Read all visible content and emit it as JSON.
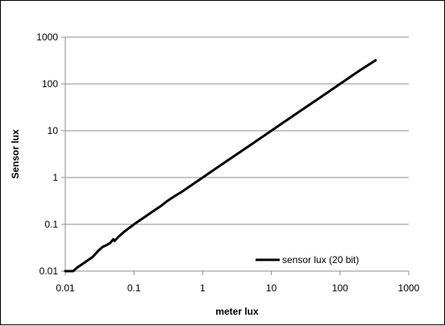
{
  "chart_data": {
    "type": "line",
    "xscale": "log",
    "yscale": "log",
    "xlabel": "meter lux",
    "ylabel": "Sensor lux",
    "xlim": [
      0.01,
      1000
    ],
    "ylim": [
      0.01,
      1000
    ],
    "x_ticks": [
      "0.01",
      "0.1",
      "1",
      "10",
      "100",
      "1000"
    ],
    "y_ticks": [
      "0.01",
      "0.1",
      "1",
      "10",
      "100",
      "1000"
    ],
    "grid": "horizontal major gridlines",
    "legend_position": "bottom-right",
    "series": [
      {
        "name": "sensor lux (20 bit)",
        "color": "#000000",
        "x": [
          0.01,
          0.013,
          0.015,
          0.02,
          0.025,
          0.03,
          0.035,
          0.04,
          0.045,
          0.05,
          0.052,
          0.06,
          0.07,
          0.08,
          0.1,
          0.12,
          0.15,
          0.2,
          0.25,
          0.3,
          0.4,
          0.5,
          0.7,
          1,
          2,
          5,
          10,
          20,
          50,
          100,
          200,
          330
        ],
        "y": [
          0.01,
          0.01,
          0.012,
          0.016,
          0.02,
          0.027,
          0.033,
          0.036,
          0.04,
          0.048,
          0.044,
          0.055,
          0.067,
          0.078,
          0.1,
          0.12,
          0.15,
          0.2,
          0.25,
          0.31,
          0.41,
          0.5,
          0.7,
          1,
          2,
          5,
          10,
          20,
          50,
          100,
          200,
          320
        ]
      }
    ]
  }
}
